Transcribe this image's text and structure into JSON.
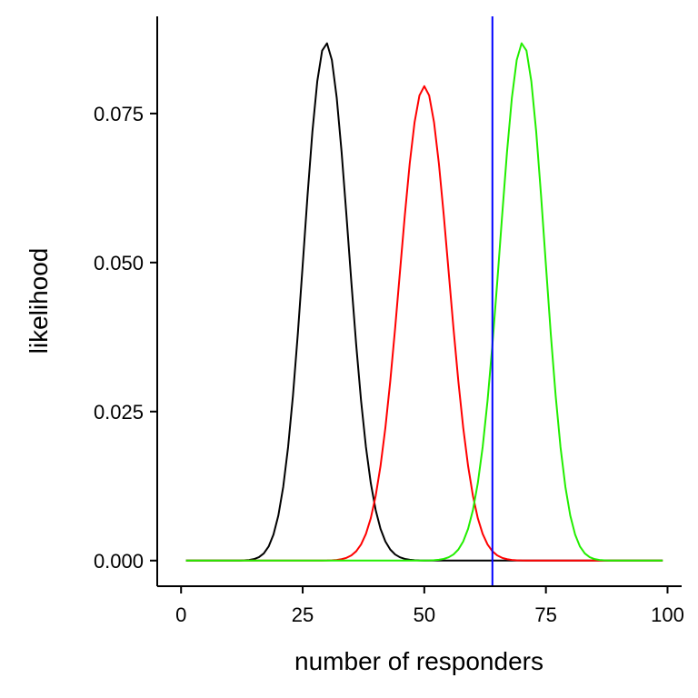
{
  "chart_data": {
    "type": "line",
    "xlabel": "number of responders",
    "ylabel": "likelihood",
    "title": "",
    "xlim": [
      -4.9,
      102.9
    ],
    "ylim": [
      -0.0043,
      0.0913
    ],
    "xticks": [
      {
        "value": 0,
        "label": "0"
      },
      {
        "value": 25,
        "label": "25"
      },
      {
        "value": 50,
        "label": "50"
      },
      {
        "value": 75,
        "label": "75"
      },
      {
        "value": 100,
        "label": "100"
      }
    ],
    "yticks": [
      {
        "value": 0.0,
        "label": "0.000"
      },
      {
        "value": 0.025,
        "label": "0.025"
      },
      {
        "value": 0.05,
        "label": "0.050"
      },
      {
        "value": 0.075,
        "label": "0.075"
      }
    ],
    "x_range": [
      1,
      99
    ],
    "series": [
      {
        "distribution": "binomial",
        "n": 100,
        "p": 0.3,
        "color": "#000000"
      },
      {
        "distribution": "binomial",
        "n": 100,
        "p": 0.5,
        "color": "#ff0000"
      },
      {
        "distribution": "binomial",
        "n": 100,
        "p": 0.7,
        "color": "#22ee00"
      }
    ],
    "reference_lines": [
      {
        "orientation": "vertical",
        "x": 64,
        "color": "#0000ff"
      }
    ],
    "grid": false,
    "legend": "none"
  },
  "colors": {
    "axis": "#000000",
    "background": "#ffffff"
  }
}
